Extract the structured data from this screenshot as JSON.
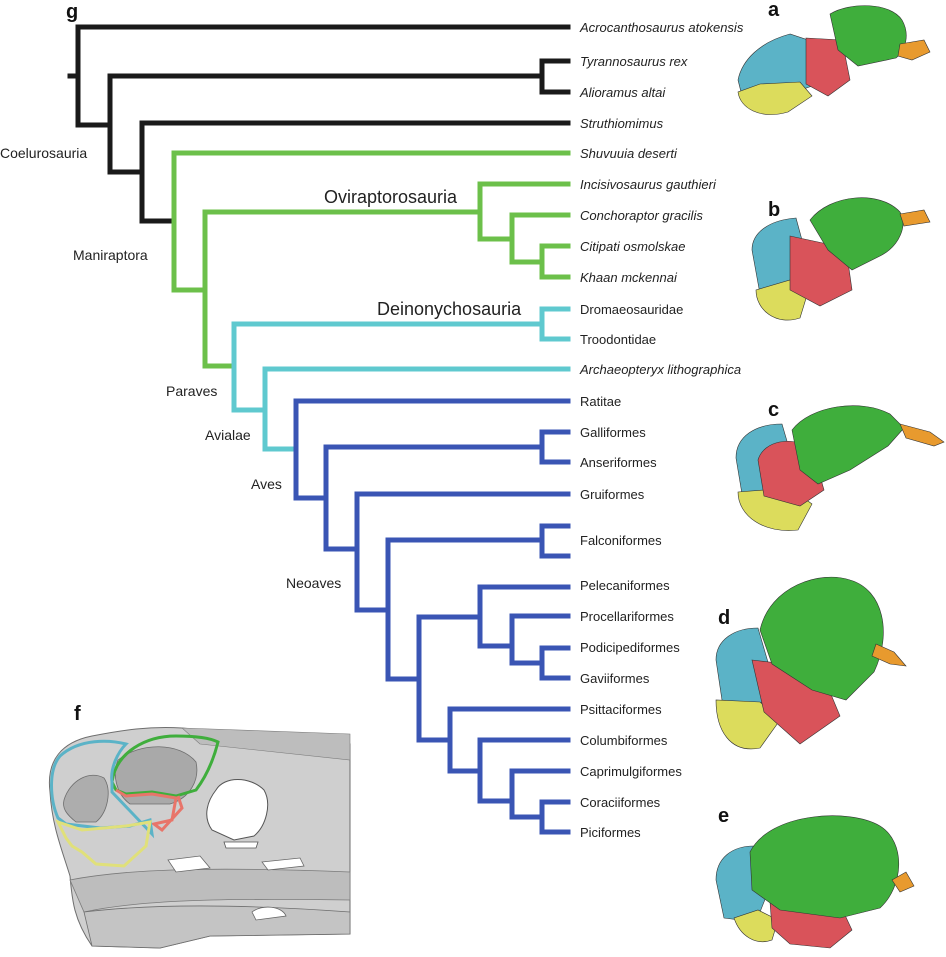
{
  "panels": {
    "a": "a",
    "b": "b",
    "c": "c",
    "d": "d",
    "e": "e",
    "f": "f",
    "g": "g"
  },
  "clades": {
    "coelurosauria": "Coelurosauria",
    "maniraptora": "Maniraptora",
    "oviraptorosauria": "Oviraptorosauria",
    "deinonychosauria": "Deinonychosauria",
    "paraves": "Paraves",
    "avialae": "Avialae",
    "aves": "Aves",
    "neoaves": "Neoaves"
  },
  "taxa": [
    {
      "name": "Acrocanthosaurus atokensis",
      "italic": true
    },
    {
      "name": "Tyrannosaurus rex",
      "italic": true
    },
    {
      "name": "Alioramus altai",
      "italic": true
    },
    {
      "name": "Struthiomimus",
      "italic": true
    },
    {
      "name": "Shuvuuia deserti",
      "italic": true
    },
    {
      "name": "Incisivosaurus gauthieri",
      "italic": true
    },
    {
      "name": "Conchoraptor gracilis",
      "italic": true
    },
    {
      "name": "Citipati osmolskae",
      "italic": true
    },
    {
      "name": "Khaan mckennai",
      "italic": true
    },
    {
      "name": "Dromaeosauridae",
      "italic": false
    },
    {
      "name": "Troodontidae",
      "italic": false
    },
    {
      "name": "Archaeopteryx lithographica",
      "italic": true
    },
    {
      "name": "Ratitae",
      "italic": false
    },
    {
      "name": "Galliformes",
      "italic": false
    },
    {
      "name": "Anseriformes",
      "italic": false
    },
    {
      "name": "Gruiformes",
      "italic": false
    },
    {
      "name": "Falconiformes",
      "italic": false
    },
    {
      "name": "Pelecaniformes",
      "italic": false
    },
    {
      "name": "Procellariformes",
      "italic": false
    },
    {
      "name": "Podicipediformes",
      "italic": false
    },
    {
      "name": "Gaviiformes",
      "italic": false
    },
    {
      "name": "Psittaciformes",
      "italic": false
    },
    {
      "name": "Columbiformes",
      "italic": false
    },
    {
      "name": "Caprimulgiformes",
      "italic": false
    },
    {
      "name": "Coraciiformes",
      "italic": false
    },
    {
      "name": "Piciformes",
      "italic": false
    }
  ],
  "colors": {
    "black": "#1a1a1a",
    "green": "#6cc04a",
    "cyan": "#5fc9cf",
    "blue": "#3a55b4",
    "region_green": "#3fae3c",
    "region_red": "#d9535a",
    "region_cyan": "#5bb3c7",
    "region_yellow": "#dcdc5c",
    "region_orange": "#e89a2e",
    "skull_gray": "#c8c8c8"
  }
}
